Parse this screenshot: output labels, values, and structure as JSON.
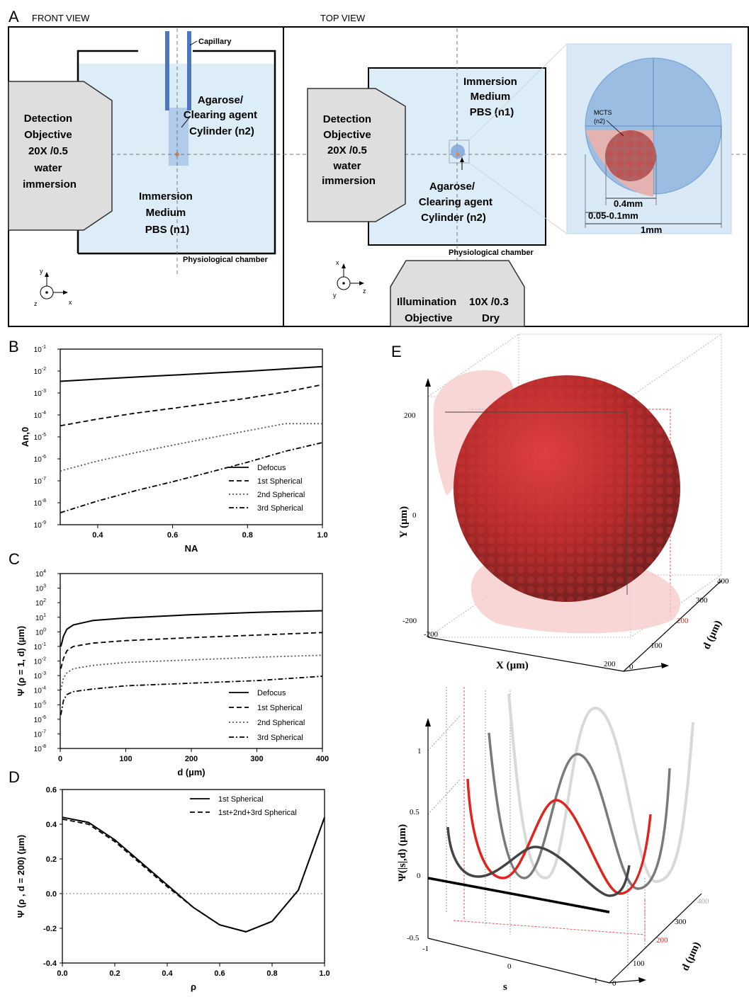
{
  "panel_a": {
    "letter": "A",
    "front_view_title": "FRONT VIEW",
    "top_view_title": "TOP VIEW",
    "capillary": "Capillary",
    "agarose_front": [
      "Agarose/",
      "Clearing agent",
      "Cylinder (n2)"
    ],
    "detection_objective": [
      "Detection",
      "Objective",
      "20X /0.5",
      "water",
      "immersion"
    ],
    "immersion_medium_front": [
      "Immersion",
      "Medium",
      "PBS (n1)"
    ],
    "physiological_chamber": "Physiological chamber",
    "immersion_medium_top": [
      "Immersion",
      "Medium",
      "PBS (n1)"
    ],
    "agarose_top": [
      "Agarose/",
      "Clearing agent",
      "Cylinder (n2)"
    ],
    "illumination_objective": [
      "Illumination",
      "10X /0.3",
      "Objective",
      "Dry"
    ],
    "mcts_label": [
      "MCTS",
      "(n2)"
    ],
    "dim_04": "0.4mm",
    "dim_005": "0.05-0.1mm",
    "dim_1": "1mm",
    "axes_front": {
      "y": "y",
      "z": "z",
      "x": "x"
    },
    "axes_top": {
      "x": "x",
      "y": "y",
      "z": "z"
    }
  },
  "panel_b": {
    "letter": "B"
  },
  "panel_c": {
    "letter": "C"
  },
  "panel_d": {
    "letter": "D"
  },
  "panel_e": {
    "letter": "E"
  },
  "chart_data": [
    {
      "id": "B",
      "type": "line",
      "xlabel": "NA",
      "ylabel": "An,0",
      "yscale": "log",
      "xlim": [
        0.3,
        1.0
      ],
      "ylim_exp": [
        -9,
        -1
      ],
      "xticks": [
        0.4,
        0.6,
        0.8,
        1.0
      ],
      "xtick_labels": [
        "0.4",
        "0.6",
        "0.8",
        "1.0"
      ],
      "ytick_labels": [
        "10-1",
        "10-2",
        "10-3",
        "10-4",
        "10-5",
        "10-6",
        "10-7",
        "10-8",
        "10-9"
      ],
      "x": [
        0.3,
        0.4,
        0.5,
        0.6,
        0.7,
        0.8,
        0.9,
        1.0
      ],
      "series": [
        {
          "name": "Defocus",
          "style": "solid",
          "values": [
            0.0034,
            0.0043,
            0.0053,
            0.0065,
            0.008,
            0.0098,
            0.0125,
            0.016
          ]
        },
        {
          "name": "1st Spherical",
          "style": "dash",
          "values": [
            3.2e-05,
            6.5e-05,
            0.00012,
            0.0002,
            0.00034,
            0.00058,
            0.0011,
            0.0024
          ]
        },
        {
          "name": "2nd Spherical",
          "style": "dot",
          "values": [
            2.8e-07,
            8e-07,
            1.9e-06,
            4.2e-06,
            9e-06,
            1.9e-05,
            4e-05,
            4e-05
          ]
        },
        {
          "name": "3rd Spherical",
          "style": "dashdot",
          "values": [
            3.5e-09,
            1.2e-08,
            3.5e-08,
            9e-08,
            2.5e-07,
            7e-07,
            2.2e-06,
            5.5e-06
          ]
        }
      ]
    },
    {
      "id": "C",
      "type": "line",
      "xlabel": "d (µm)",
      "ylabel": "Ψ (ρ = 1, d) (µm)",
      "yscale": "log",
      "xlim": [
        0,
        400
      ],
      "ylim_exp": [
        -8,
        4
      ],
      "xticks": [
        0,
        100,
        200,
        300,
        400
      ],
      "xtick_labels": [
        "0",
        "100",
        "200",
        "300",
        "400"
      ],
      "ytick_labels": [
        "10-8",
        "10-7",
        "10-6",
        "10-5",
        "10-4",
        "10-3",
        "10-2",
        "10-1",
        "100",
        "101",
        "102",
        "103",
        "104"
      ],
      "x": [
        1,
        5,
        10,
        20,
        50,
        100,
        200,
        300,
        400
      ],
      "series": [
        {
          "name": "Defocus",
          "style": "solid",
          "values": [
            0.1,
            0.5,
            1.5,
            3,
            6,
            9,
            15,
            22,
            28
          ]
        },
        {
          "name": "1st Spherical",
          "style": "dash",
          "values": [
            0.003,
            0.015,
            0.05,
            0.1,
            0.17,
            0.25,
            0.4,
            0.6,
            0.9
          ]
        },
        {
          "name": "2nd Spherical",
          "style": "dot",
          "values": [
            0.0001,
            0.0007,
            0.0015,
            0.003,
            0.005,
            0.008,
            0.012,
            0.018,
            0.025
          ]
        },
        {
          "name": "3rd Spherical",
          "style": "dashdot",
          "values": [
            2e-06,
            2e-05,
            5e-05,
            8e-05,
            0.00012,
            0.0002,
            0.0003,
            0.00045,
            0.0009
          ]
        }
      ]
    },
    {
      "id": "D",
      "type": "line",
      "xlabel": "ρ",
      "ylabel": "Ψ (ρ , d = 200) (µm)",
      "xlim": [
        0,
        1
      ],
      "ylim": [
        -0.4,
        0.6
      ],
      "xticks": [
        0,
        0.2,
        0.4,
        0.6,
        0.8,
        1.0
      ],
      "xtick_labels": [
        "0.0",
        "0.2",
        "0.4",
        "0.6",
        "0.8",
        "1.0"
      ],
      "yticks": [
        -0.4,
        -0.2,
        0.0,
        0.2,
        0.4,
        0.6
      ],
      "ytick_labels": [
        "-0.4",
        "-0.2",
        "0.0",
        "0.2",
        "0.4",
        "0.6"
      ],
      "x": [
        0,
        0.1,
        0.2,
        0.3,
        0.4,
        0.5,
        0.6,
        0.7,
        0.8,
        0.9,
        1.0
      ],
      "series": [
        {
          "name": "1st Spherical",
          "style": "solid",
          "values": [
            0.44,
            0.41,
            0.31,
            0.18,
            0.05,
            -0.08,
            -0.18,
            -0.22,
            -0.16,
            0.02,
            0.44
          ]
        },
        {
          "name": "1st+2nd+3rd Spherical",
          "style": "dash",
          "values": [
            0.43,
            0.4,
            0.3,
            0.17,
            0.04,
            -0.08,
            -0.18,
            -0.22,
            -0.16,
            0.02,
            0.44
          ]
        }
      ]
    },
    {
      "id": "E_bottom",
      "type": "line",
      "xlabel": "s",
      "ylabel": "Ψ(|s|,d) (µm)",
      "zlabel": "d (µm)",
      "xtick_labels": [
        "-1",
        "0",
        "1"
      ],
      "ytick_labels": [
        "-0.5",
        "0",
        "0.5",
        "1"
      ],
      "ztick_labels": [
        "0",
        "100",
        "200",
        "300",
        "400"
      ],
      "highlight": "200"
    }
  ],
  "panel_e_top": {
    "ylabel": "Y (µm)",
    "xlabel": "X (µm)",
    "zlabel": "d (µm)",
    "ytick_labels": [
      "200",
      "0",
      "-200"
    ],
    "xtick_labels": [
      "-200",
      "200"
    ],
    "ztick_labels": [
      "0",
      "100",
      "200",
      "300",
      "400"
    ]
  },
  "colors": {
    "chamber": "#dcedf7",
    "objective": "#dedede",
    "cylinder": "#7aa3d6",
    "capillary": "#4b78c0",
    "highlight": "#e0231c",
    "spheroid": "#c0392b"
  }
}
